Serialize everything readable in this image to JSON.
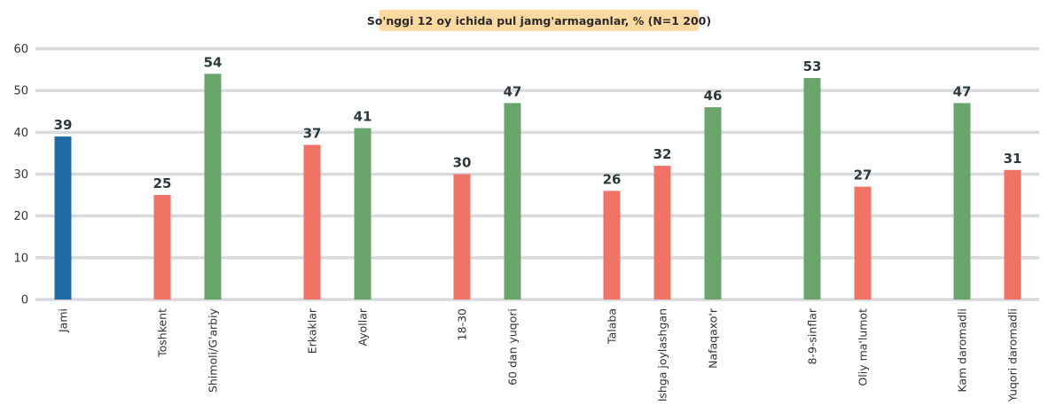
{
  "chart_data": {
    "type": "bar",
    "title": "So'nggi 12 oy ichida pul jamg'armaganlar, % (N=1 200)",
    "xlabel": "",
    "ylabel": "",
    "ylim": [
      0,
      60
    ],
    "yticks": [
      0,
      10,
      20,
      30,
      40,
      50,
      60
    ],
    "grid": true,
    "colors": {
      "total": "#1f6ba3",
      "red": "#ef7466",
      "green": "#6aa56c",
      "grid": "#d9d9de",
      "title_bg": "#fcd9a0"
    },
    "groups": [
      [
        {
          "category": "Jami",
          "value": 39,
          "color": "total"
        }
      ],
      [
        {
          "category": "Toshkent",
          "value": 25,
          "color": "red"
        },
        {
          "category": "Shimoli/G'arbiy",
          "value": 54,
          "color": "green"
        }
      ],
      [
        {
          "category": "Erkaklar",
          "value": 37,
          "color": "red"
        },
        {
          "category": "Ayollar",
          "value": 41,
          "color": "green"
        }
      ],
      [
        {
          "category": "18-30",
          "value": 30,
          "color": "red"
        },
        {
          "category": "60 dan yuqori",
          "value": 47,
          "color": "green"
        }
      ],
      [
        {
          "category": "Talaba",
          "value": 26,
          "color": "red"
        },
        {
          "category": "Ishga joylashgan",
          "value": 32,
          "color": "red"
        },
        {
          "category": "Nafaqaxo'r",
          "value": 46,
          "color": "green"
        }
      ],
      [
        {
          "category": "8-9-sinflar",
          "value": 53,
          "color": "green"
        },
        {
          "category": "Oliy ma'lumot",
          "value": 27,
          "color": "red"
        }
      ],
      [
        {
          "category": "Kam daromadli",
          "value": 47,
          "color": "green"
        },
        {
          "category": "Yuqori daromadli",
          "value": 31,
          "color": "red"
        }
      ]
    ]
  }
}
